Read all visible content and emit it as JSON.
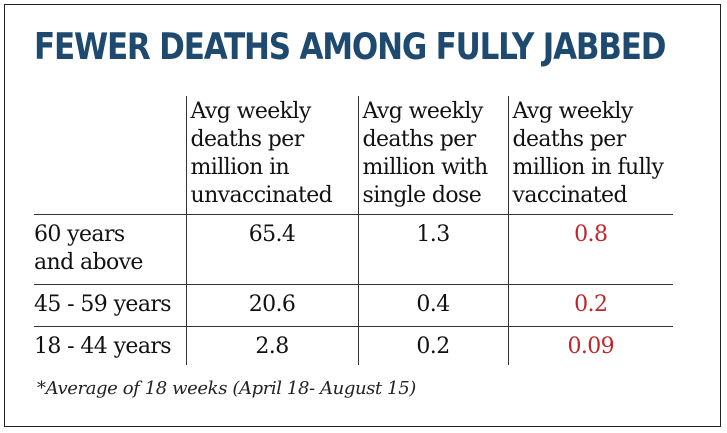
{
  "chart_data": {
    "type": "table",
    "title": "FEWER DEATHS AMONG FULLY JABBED",
    "columns": [
      "",
      "Avg weekly deaths per million in unvaccinated",
      "Avg weekly deaths per million with single dose",
      "Avg weekly deaths per million in fully vaccinated"
    ],
    "column_lines": [
      [],
      [
        "Avg weekly",
        "deaths per",
        "million in",
        "unvaccinated"
      ],
      [
        "Avg weekly",
        "deaths per",
        "million with",
        "single dose"
      ],
      [
        "Avg weekly",
        "deaths per",
        "million in fully",
        "vaccinated"
      ]
    ],
    "rows": [
      {
        "label_lines": [
          "60 years",
          "and above"
        ],
        "label": "60 years and above",
        "values": [
          "65.4",
          "1.3",
          "0.8"
        ]
      },
      {
        "label_lines": [
          "45 - 59 years"
        ],
        "label": "45 - 59 years",
        "values": [
          "20.6",
          "0.4",
          "0.2"
        ]
      },
      {
        "label_lines": [
          "18 - 44 years"
        ],
        "label": "18 - 44 years",
        "values": [
          "2.8",
          "0.2",
          "0.09"
        ]
      }
    ],
    "footnote": "*Average of 18 weeks (April 18- August 15)",
    "colors": {
      "title": "#1d4a6e",
      "fully_vaccinated_values": "#c0262a",
      "text": "#111111"
    }
  }
}
